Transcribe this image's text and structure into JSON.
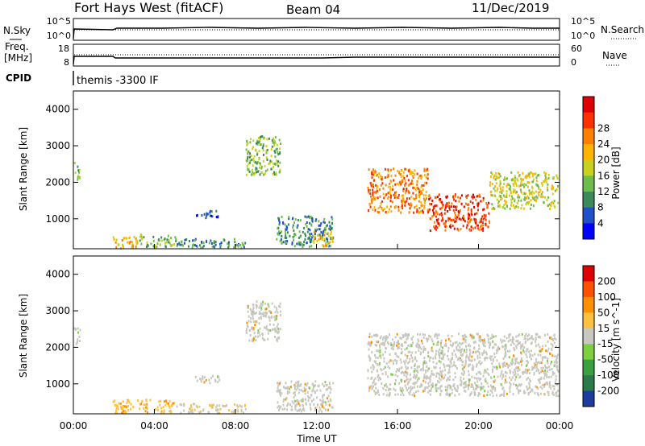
{
  "header": {
    "station": "Fort Hays West (fitACF)",
    "beam": "Beam 04",
    "date": "11/Dec/2019"
  },
  "top_panels": {
    "nsky": {
      "left_label": "N.Sky",
      "left_ticks": [
        "10^5",
        "10^0"
      ],
      "right_ticks": [
        "10^5",
        "10^0"
      ],
      "right_label": "N.Search"
    },
    "freq": {
      "left_label_top": "Freq.",
      "left_label_bottom": "[MHz]",
      "left_ticks": [
        "18",
        "8"
      ],
      "right_ticks": [
        "60",
        "0"
      ],
      "right_label": "Nave"
    },
    "cpid": {
      "label": "CPID",
      "value": "themis -3300 IF"
    }
  },
  "chart_data": [
    {
      "type": "heatmap",
      "panel": "power",
      "ylabel": "Slant Range [km]",
      "yticks": [
        1000,
        2000,
        3000,
        4000
      ],
      "ylim": [
        180,
        4500
      ],
      "colorbar": {
        "label": "Power [dB]",
        "tick_labels": [
          "4",
          "8",
          "12",
          "16",
          "20",
          "24",
          "28"
        ],
        "colors": [
          "#0000ff",
          "#2050c8",
          "#3a8a5a",
          "#6cbd4a",
          "#c8d21e",
          "#ffb400",
          "#ff8000",
          "#ff3000",
          "#e00000"
        ]
      },
      "regions": [
        {
          "x": [
            1.9,
            3.2
          ],
          "y": [
            220,
            560
          ],
          "level": 5
        },
        {
          "x": [
            3.2,
            5.0
          ],
          "y": [
            250,
            600
          ],
          "level": 3
        },
        {
          "x": [
            5.0,
            8.5
          ],
          "y": [
            230,
            480
          ],
          "level": 2
        },
        {
          "x": [
            6.0,
            7.2
          ],
          "y": [
            1050,
            1250
          ],
          "level": 1
        },
        {
          "x": [
            8.5,
            10.2
          ],
          "y": [
            2200,
            3300
          ],
          "level": 3
        },
        {
          "x": [
            10.0,
            12.8
          ],
          "y": [
            250,
            1100
          ],
          "level": 2
        },
        {
          "x": [
            11.8,
            12.8
          ],
          "y": [
            250,
            700
          ],
          "level": 5
        },
        {
          "x": [
            14.5,
            17.5
          ],
          "y": [
            1200,
            2400
          ],
          "level": 6
        },
        {
          "x": [
            17.5,
            20.5
          ],
          "y": [
            700,
            1700
          ],
          "level": 7
        },
        {
          "x": [
            20.5,
            23.9
          ],
          "y": [
            1300,
            2300
          ],
          "level": 4
        },
        {
          "x": [
            0.0,
            0.3
          ],
          "y": [
            2100,
            2600
          ],
          "level": 3
        }
      ]
    },
    {
      "type": "heatmap",
      "panel": "velocity",
      "xlabel": "Time UT",
      "ylabel": "Slant Range [km]",
      "xticks": [
        "00:00",
        "04:00",
        "08:00",
        "12:00",
        "16:00",
        "20:00",
        "00:00"
      ],
      "xlim": [
        0,
        24
      ],
      "yticks": [
        1000,
        2000,
        3000,
        4000
      ],
      "ylim": [
        180,
        4500
      ],
      "colorbar": {
        "label": "Velocity [m s^-1]",
        "tick_labels": [
          "200",
          "100",
          "50",
          "15",
          "-15",
          "-50",
          "-100",
          "-200"
        ],
        "colors": [
          "#1e3ca0",
          "#2a7a4a",
          "#3aa040",
          "#7ed040",
          "#c8c8c0",
          "#ffc040",
          "#ff9000",
          "#ff5000",
          "#e00000"
        ]
      },
      "regions": [
        {
          "x": [
            1.9,
            5.0
          ],
          "y": [
            220,
            600
          ],
          "value": -50
        },
        {
          "x": [
            5.0,
            8.5
          ],
          "y": [
            230,
            480
          ],
          "value": -15
        },
        {
          "x": [
            6.0,
            7.2
          ],
          "y": [
            1050,
            1250
          ],
          "value": 0
        },
        {
          "x": [
            8.5,
            10.2
          ],
          "y": [
            2200,
            3300
          ],
          "value": 0
        },
        {
          "x": [
            10.0,
            12.8
          ],
          "y": [
            250,
            1100
          ],
          "value": 0
        },
        {
          "x": [
            14.5,
            23.9
          ],
          "y": [
            700,
            2400
          ],
          "value": 0
        },
        {
          "x": [
            0.0,
            0.3
          ],
          "y": [
            2100,
            2600
          ],
          "value": 0
        }
      ]
    }
  ]
}
